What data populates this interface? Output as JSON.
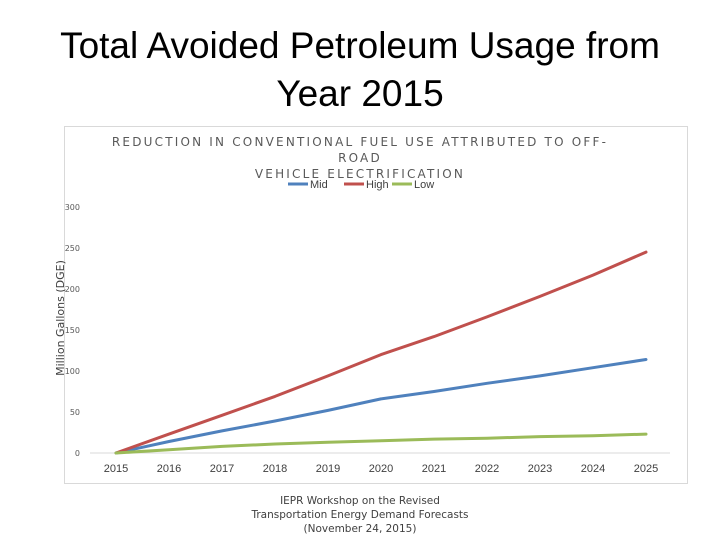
{
  "slide": {
    "title_line1": "Total Avoided Petroleum Usage from",
    "title_line2": "Year 2015"
  },
  "footer": {
    "line1": "IEPR Workshop on the Revised",
    "line2": "Transportation Energy Demand Forecasts",
    "line3": "(November 24, 2015)"
  },
  "chart_data": {
    "type": "line",
    "title": "REDUCTION IN CONVENTIONAL FUEL USE ATTRIBUTED TO OFF-ROAD VEHICLE ELECTRIFICATION",
    "title_line1": "REDUCTION IN CONVENTIONAL FUEL USE ATTRIBUTED TO OFF-ROAD",
    "title_line2": "VEHICLE ELECTRIFICATION",
    "xlabel": "",
    "ylabel": "Million Gallons (DGE)",
    "x": [
      "2015",
      "2016",
      "2017",
      "2018",
      "2019",
      "2020",
      "2021",
      "2022",
      "2023",
      "2024",
      "2025"
    ],
    "ylim": [
      0,
      300
    ],
    "yticks": [
      0,
      50,
      100,
      150,
      200,
      250,
      300
    ],
    "grid": false,
    "legend": "top-center",
    "series": [
      {
        "name": "Mid",
        "color": "#4f81bd",
        "values": [
          0,
          14,
          27,
          39,
          52,
          66,
          75,
          85,
          94,
          104,
          114
        ]
      },
      {
        "name": "High",
        "color": "#c0504d",
        "values": [
          0,
          23,
          46,
          69,
          94,
          120,
          142,
          166,
          191,
          217,
          245
        ]
      },
      {
        "name": "Low",
        "color": "#9bbb59",
        "values": [
          0,
          4,
          8,
          11,
          13,
          15,
          17,
          18,
          20,
          21,
          23
        ]
      }
    ]
  }
}
